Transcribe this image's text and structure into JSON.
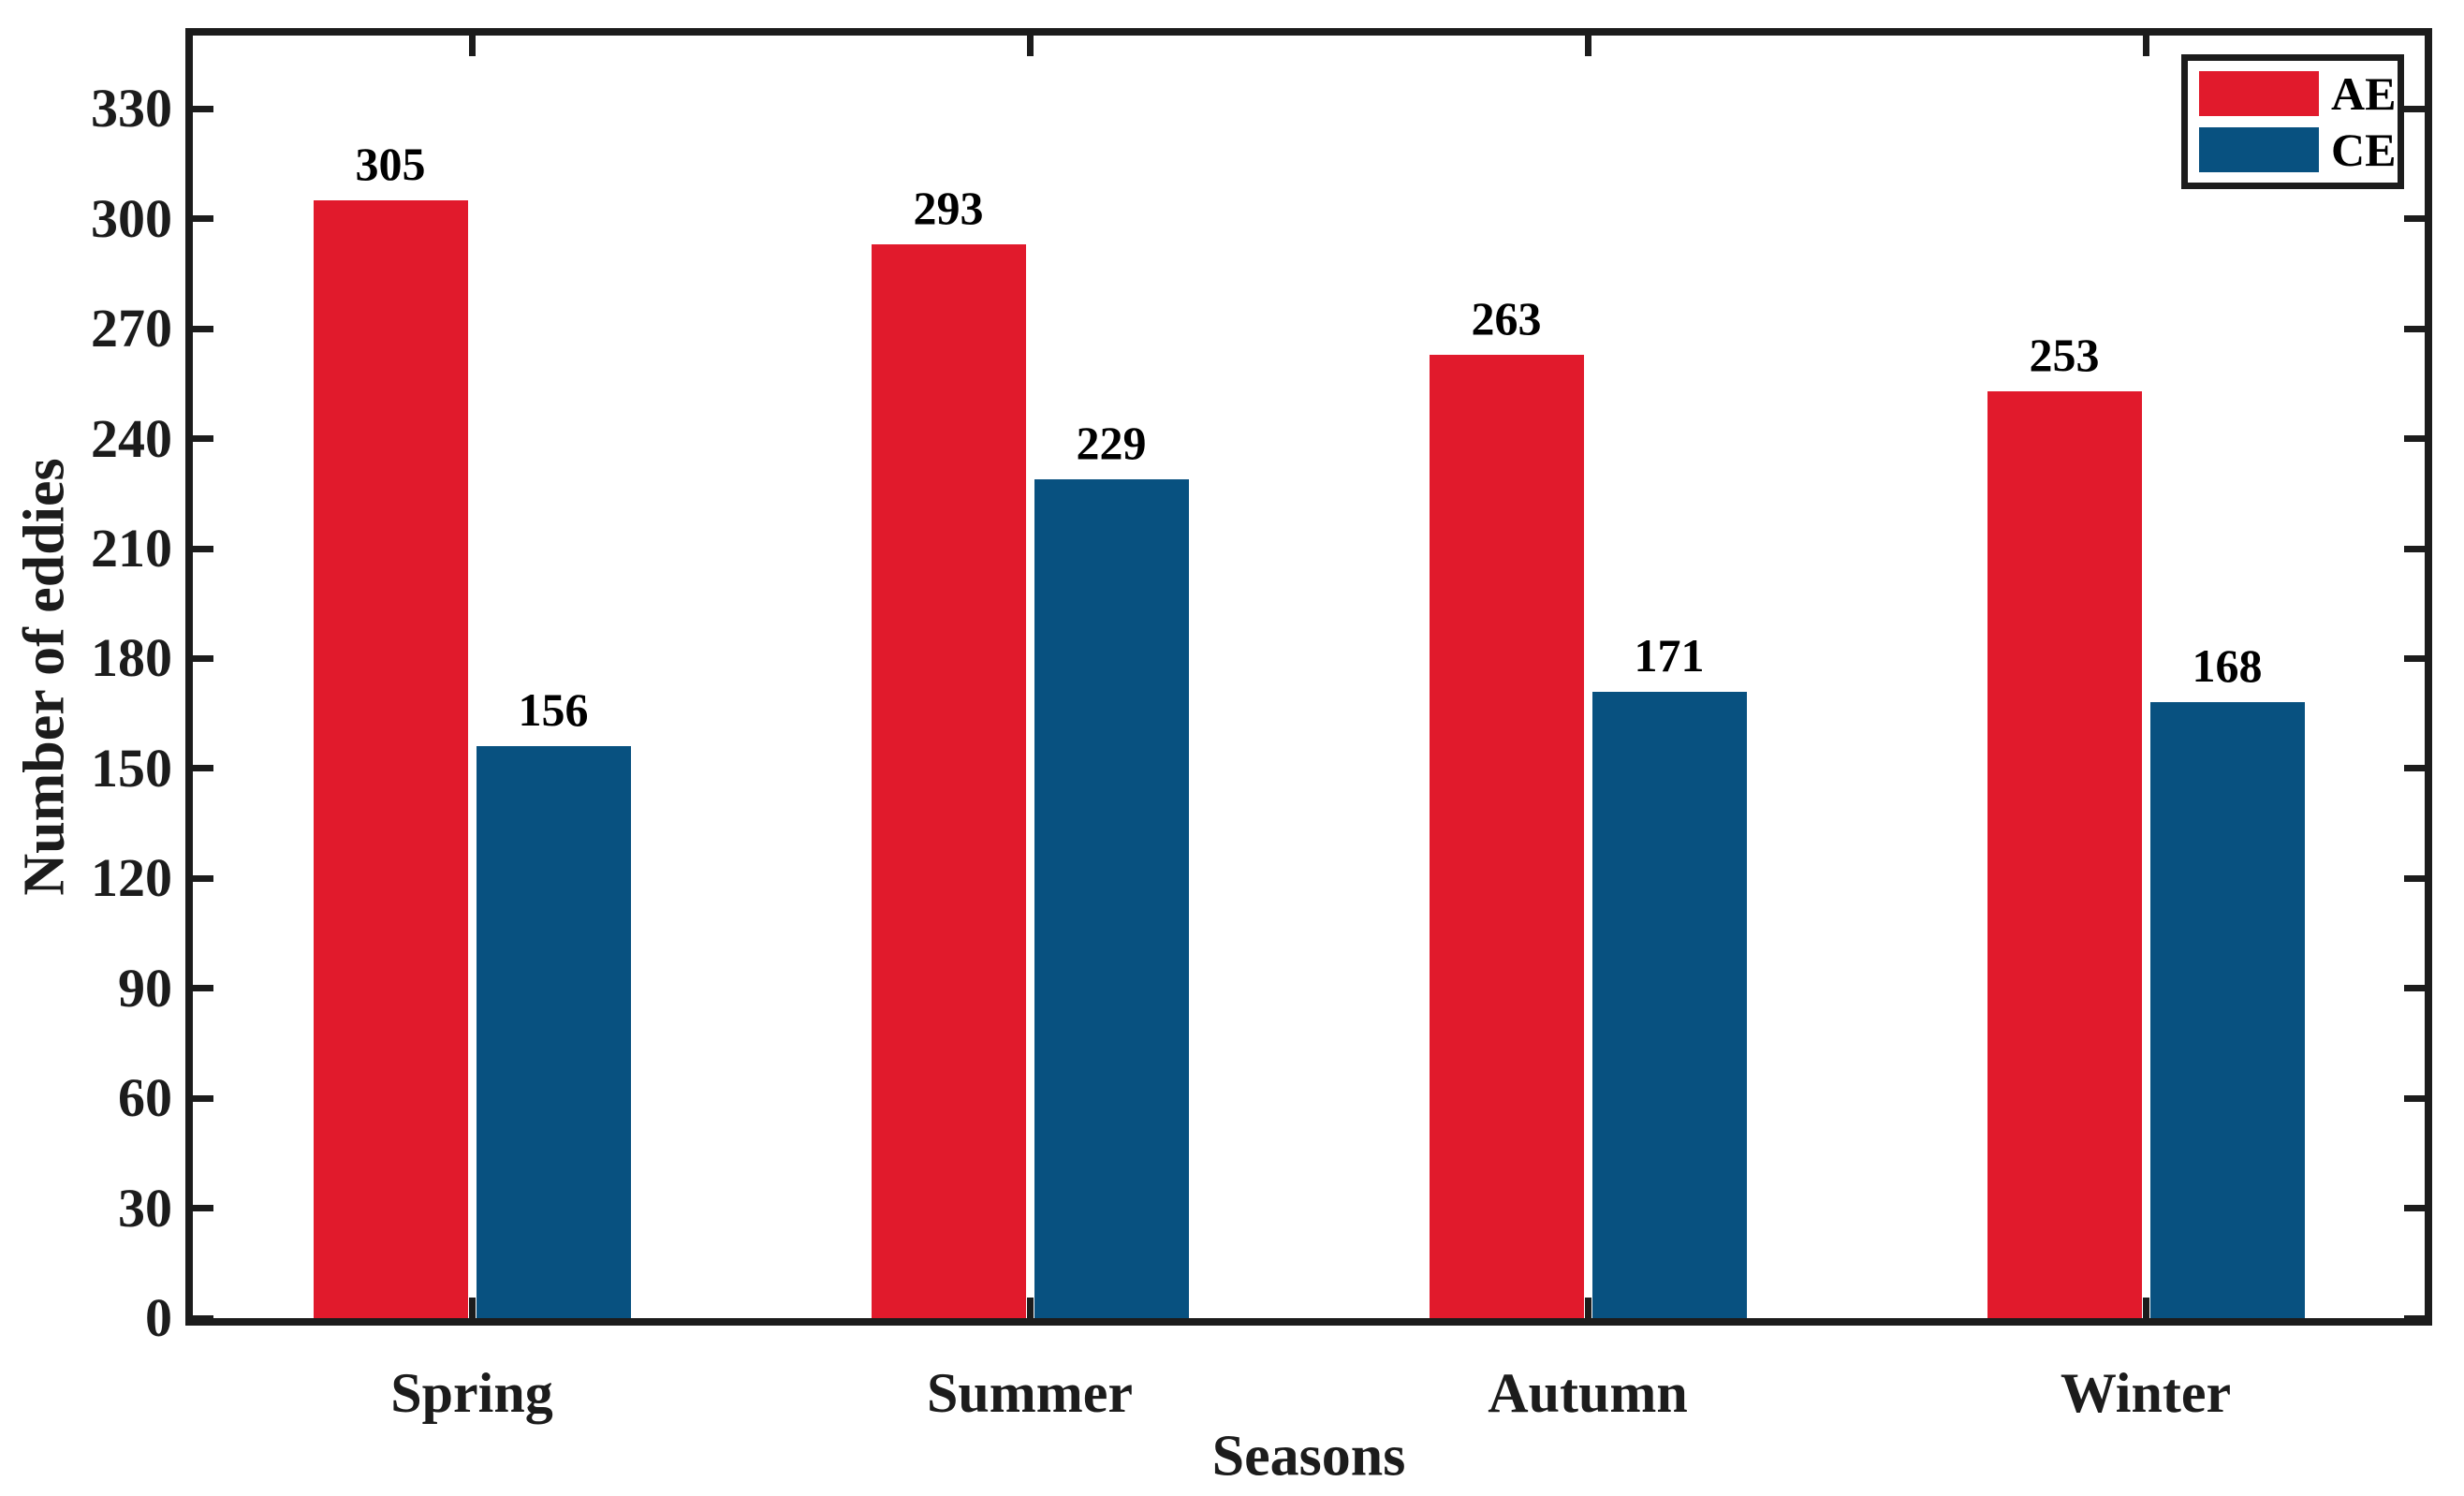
{
  "chart_data": {
    "type": "bar",
    "categories": [
      "Spring",
      "Summer",
      "Autumn",
      "Winter"
    ],
    "series": [
      {
        "name": "AE",
        "color": "#E11A2C",
        "values": [
          305,
          293,
          263,
          253
        ]
      },
      {
        "name": "CE",
        "color": "#085180",
        "values": [
          156,
          229,
          171,
          168
        ]
      }
    ],
    "title": "",
    "xlabel": "Seasons",
    "ylabel": "Number of eddies",
    "ylim": [
      0,
      350
    ],
    "yticks": [
      0,
      30,
      60,
      90,
      120,
      150,
      180,
      210,
      240,
      270,
      300,
      330
    ],
    "bar_value_labels": [
      [
        305,
        293,
        263,
        253
      ],
      [
        156,
        229,
        171,
        168
      ]
    ],
    "grid": false,
    "legend_position": "top-right",
    "axis_color": "#1c1c1c",
    "text_color": "#000000",
    "background_color": "#ffffff"
  }
}
